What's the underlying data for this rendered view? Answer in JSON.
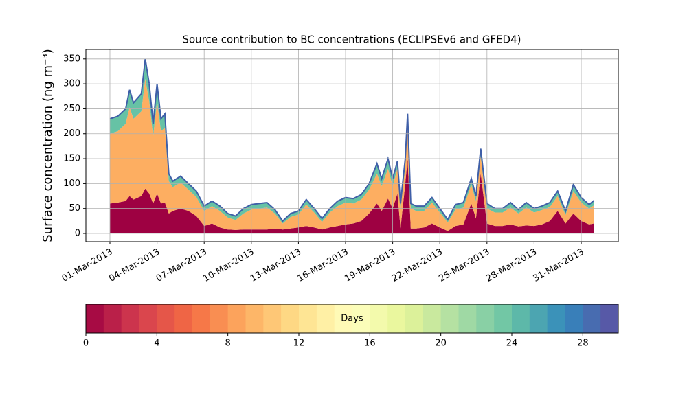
{
  "chart_data": {
    "type": "area",
    "stacked": true,
    "title": "Source contribution to BC concentrations (ECLIPSEv6 and GFED4)",
    "y_label": "Surface concentration (ng m⁻³)",
    "x": [
      0,
      0.5,
      1,
      1.25,
      1.5,
      2,
      2.25,
      2.5,
      2.75,
      3,
      3.25,
      3.5,
      3.75,
      4,
      4.5,
      5,
      5.5,
      6,
      6.5,
      7,
      7.5,
      8,
      8.5,
      9,
      9.5,
      10,
      10.5,
      11,
      11.5,
      12,
      12.5,
      13,
      13.5,
      14,
      14.5,
      15,
      15.5,
      16,
      16.5,
      17,
      17.3,
      17.7,
      18,
      18.3,
      18.5,
      18.8,
      18.95,
      19.15,
      19.5,
      20,
      20.5,
      21,
      21.5,
      22,
      22.5,
      23,
      23.3,
      23.6,
      24,
      24.5,
      25,
      25.5,
      26,
      26.5,
      27,
      27.5,
      28,
      28.5,
      29,
      29.5,
      30,
      30.5,
      30.8
    ],
    "series": [
      {
        "color": "#9e0142",
        "values": [
          60,
          62,
          65,
          75,
          68,
          75,
          90,
          80,
          60,
          80,
          60,
          62,
          40,
          45,
          50,
          45,
          35,
          15,
          20,
          12,
          8,
          7,
          8,
          8,
          8,
          8,
          10,
          8,
          10,
          12,
          15,
          12,
          8,
          12,
          15,
          18,
          20,
          25,
          40,
          60,
          45,
          70,
          50,
          80,
          10,
          100,
          150,
          10,
          10,
          12,
          20,
          12,
          5,
          15,
          18,
          60,
          30,
          120,
          20,
          15,
          15,
          18,
          14,
          16,
          15,
          18,
          25,
          45,
          20,
          40,
          25,
          18,
          20
        ]
      },
      {
        "color": "#fdae61",
        "values": [
          140,
          143,
          155,
          178,
          162,
          170,
          220,
          185,
          135,
          185,
          145,
          150,
          65,
          48,
          52,
          43,
          38,
          30,
          35,
          33,
          24,
          20,
          32,
          40,
          42,
          44,
          30,
          12,
          23,
          26,
          43,
          30,
          15,
          30,
          40,
          44,
          40,
          43,
          48,
          60,
          50,
          60,
          45,
          50,
          40,
          35,
          65,
          40,
          35,
          33,
          42,
          30,
          17,
          33,
          34,
          38,
          35,
          35,
          30,
          27,
          27,
          34,
          26,
          36,
          27,
          29,
          28,
          30,
          17,
          45,
          37,
          32,
          36
        ]
      },
      {
        "color": "#66c2a5",
        "values": [
          30,
          30,
          30,
          35,
          32,
          35,
          40,
          35,
          25,
          35,
          25,
          28,
          15,
          12,
          13,
          12,
          12,
          10,
          10,
          10,
          8,
          8,
          10,
          10,
          10,
          10,
          8,
          5,
          7,
          7,
          10,
          8,
          7,
          8,
          10,
          10,
          10,
          10,
          12,
          20,
          15,
          20,
          15,
          15,
          10,
          15,
          25,
          10,
          10,
          10,
          10,
          8,
          6,
          10,
          10,
          12,
          10,
          15,
          10,
          8,
          8,
          10,
          8,
          10,
          8,
          8,
          9,
          10,
          8,
          13,
          10,
          8,
          10
        ]
      }
    ],
    "line_color": "#3f5fa8",
    "xlim": [
      -1.53,
      32.36
    ],
    "xticks": [
      {
        "value": 0,
        "label": "01-Mar-2013"
      },
      {
        "value": 3,
        "label": "04-Mar-2013"
      },
      {
        "value": 6,
        "label": "07-Mar-2013"
      },
      {
        "value": 9,
        "label": "10-Mar-2013"
      },
      {
        "value": 12,
        "label": "13-Mar-2013"
      },
      {
        "value": 15,
        "label": "16-Mar-2013"
      },
      {
        "value": 18,
        "label": "19-Mar-2013"
      },
      {
        "value": 21,
        "label": "22-Mar-2013"
      },
      {
        "value": 24,
        "label": "25-Mar-2013"
      },
      {
        "value": 27,
        "label": "28-Mar-2013"
      },
      {
        "value": 30,
        "label": "31-Mar-2013"
      }
    ],
    "ylim": [
      -16.5,
      369
    ],
    "yticks": [
      0,
      50,
      100,
      150,
      200,
      250,
      300,
      350
    ],
    "grid": true,
    "colorbar": {
      "label": "Days",
      "lim": [
        0,
        30
      ],
      "ticks": [
        0,
        4,
        8,
        12,
        16,
        20,
        24,
        28
      ],
      "levels": 30,
      "colors": [
        "#9e0142",
        "#d53e4f",
        "#f46d43",
        "#fdae61",
        "#fee08b",
        "#ffffbf",
        "#e6f598",
        "#abdda4",
        "#66c2a5",
        "#3288bd",
        "#5e4fa2"
      ]
    }
  }
}
